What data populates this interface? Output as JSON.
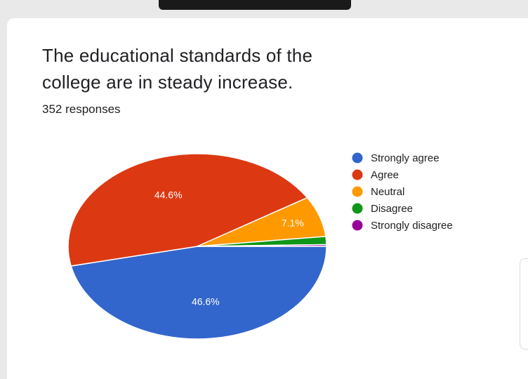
{
  "question": {
    "title_line1": "The educational standards of the",
    "title_line2": "college are in steady increase.",
    "responses": "352 responses"
  },
  "chart_data": {
    "type": "pie",
    "total_responses": 352,
    "slices": [
      {
        "label": "Strongly agree",
        "percent": 46.6,
        "color": "#3366cc",
        "show_label": true
      },
      {
        "label": "Agree",
        "percent": 44.6,
        "color": "#dc3912",
        "show_label": true
      },
      {
        "label": "Neutral",
        "percent": 7.1,
        "color": "#ff9900",
        "show_label": true
      },
      {
        "label": "Disagree",
        "percent": 1.4,
        "color": "#109618",
        "show_label": false
      },
      {
        "label": "Strongly disagree",
        "percent": 0.3,
        "color": "#990099",
        "show_label": false
      }
    ],
    "legend_position": "right"
  }
}
